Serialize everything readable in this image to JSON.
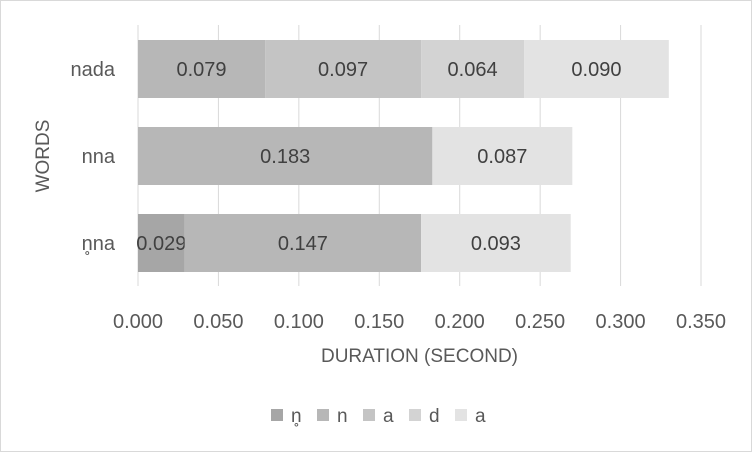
{
  "chart_data": {
    "type": "bar",
    "orientation": "horizontal",
    "stacked": true,
    "categories": [
      "nada",
      "nna",
      "n̥na"
    ],
    "series": [
      {
        "name": "n̥",
        "color": "#a6a6a6",
        "values": [
          null,
          null,
          0.029
        ],
        "labels": [
          null,
          null,
          "0.029"
        ]
      },
      {
        "name": "n",
        "color": "#b7b7b7",
        "values": [
          0.079,
          0.183,
          0.147
        ],
        "labels": [
          "0.079",
          "0.183",
          "0.147"
        ]
      },
      {
        "name": "a",
        "color": "#c4c4c4",
        "values": [
          0.097,
          null,
          null
        ],
        "labels": [
          "0.097",
          null,
          null
        ]
      },
      {
        "name": "d",
        "color": "#d3d3d3",
        "values": [
          0.064,
          null,
          null
        ],
        "labels": [
          "0.064",
          null,
          null
        ]
      },
      {
        "name": "a",
        "color": "#e3e3e3",
        "values": [
          0.09,
          0.087,
          0.093
        ],
        "labels": [
          "0.090",
          "0.087",
          "0.093"
        ]
      }
    ],
    "xlabel": "DURATION (SECOND)",
    "ylabel": "WORDS",
    "xlim": [
      0,
      0.35
    ],
    "xticks": [
      "0.000",
      "0.050",
      "0.100",
      "0.150",
      "0.200",
      "0.250",
      "0.300",
      "0.350"
    ],
    "grid": "vertical",
    "legend": "bottom"
  }
}
